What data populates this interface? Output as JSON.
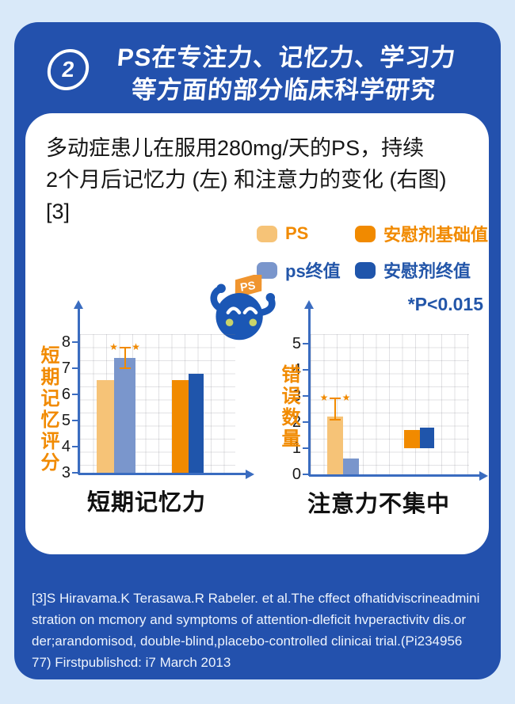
{
  "header": {
    "badge": "2",
    "title_line1": "PS在专注力、记忆力、学习力",
    "title_line2": "等方面的部分临床科学研究"
  },
  "description": {
    "lines": [
      "多动症患儿在服用280mg/天的PS，持续",
      "2个月后记忆力 (左) 和注意力的变化 (右图)",
      "[3]"
    ]
  },
  "legend": {
    "items": [
      {
        "label": "PS",
        "color": "#f6c377",
        "text_color": "#f18a00"
      },
      {
        "label": "安慰剂基础值",
        "color": "#f18a00",
        "text_color": "#f18a00"
      },
      {
        "label": "ps终值",
        "color": "#7a96cc",
        "text_color": "#2356a9"
      },
      {
        "label": "安慰剂终值",
        "color": "#1f55ab",
        "text_color": "#2356a9"
      }
    ],
    "significance_note": "*P<0.015"
  },
  "mascot": {
    "flag_label": "PS"
  },
  "chart_data": [
    {
      "type": "bar",
      "title": "短期记忆力",
      "ylabel": "短期记忆评分",
      "ylim": [
        3,
        8
      ],
      "yticks": [
        8,
        7,
        6,
        5,
        4,
        3
      ],
      "grid": true,
      "series": [
        {
          "name": "PS",
          "value": 6.55,
          "color": "#f6c377"
        },
        {
          "name": "ps终值",
          "value": 7.4,
          "color": "#7a96cc",
          "error": [
            7.0,
            7.8
          ],
          "significant": true
        },
        {
          "name": "安慰剂基础值",
          "value": 6.55,
          "color": "#f18a00"
        },
        {
          "name": "安慰剂终值",
          "value": 6.8,
          "color": "#1f55ab"
        }
      ]
    },
    {
      "type": "bar",
      "title": "注意力不集中",
      "ylabel": "错误数量",
      "ylim": [
        0,
        5.6
      ],
      "yticks": [
        5,
        4,
        3,
        2,
        1,
        0
      ],
      "grid": true,
      "series": [
        {
          "name": "PS",
          "value": 2.2,
          "color": "#f6c377",
          "error": [
            2.1,
            2.9
          ],
          "significant": true
        },
        {
          "name": "ps终值",
          "value": 0.6,
          "color": "#7a96cc"
        },
        {
          "name": "安慰剂基础值",
          "value": 1.7,
          "base": 1.0,
          "color": "#f18a00"
        },
        {
          "name": "安慰剂终值",
          "value": 1.8,
          "base": 1.0,
          "color": "#1f55ab"
        }
      ]
    }
  ],
  "footnote": {
    "lines": [
      "[3]S Hiravama.K Terasawa.R Rabeler. et al.The cffect ofhatidviscrineadmini",
      "stration on mcmory and symptoms of attention-dleficit hvperactivitv dis.or",
      "der;arandomisod, double-blind,placebo-controlled clinicai trial.(Pi234956",
      "77) Firstpublishcd: i7 March 2013"
    ]
  },
  "colors": {
    "page_bg": "#d9e9f9",
    "card_blue": "#2351ad",
    "white": "#ffffff",
    "orange": "#f18a00",
    "light_orange": "#f6c377",
    "blue_dark": "#1f55ab",
    "blue_light": "#7a96cc",
    "axis_blue": "#3a6cc0",
    "legend_text_blue": "#2356a9"
  }
}
